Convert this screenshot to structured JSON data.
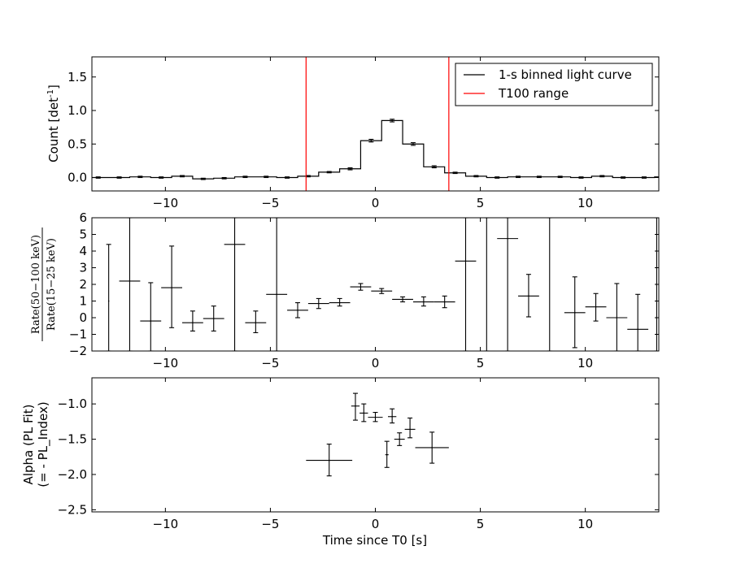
{
  "chart_data": [
    {
      "type": "line",
      "subtype": "step-with-errorbars",
      "ylabel": "Count [det",
      "ylabel_sup": "-1",
      "ylabel_close": "]",
      "xlim": [
        -13.5,
        13.5
      ],
      "ylim": [
        -0.2,
        1.8
      ],
      "xticks": [
        -10,
        -5,
        0,
        5,
        10
      ],
      "xtick_labels": [
        "−10",
        "−5",
        "0",
        "5",
        "10"
      ],
      "yticks": [
        0.0,
        0.5,
        1.0,
        1.5
      ],
      "ytick_labels": [
        "0.0",
        "0.5",
        "1.0",
        "1.5"
      ],
      "bin_edges": [
        -13.7,
        -12.7,
        -11.7,
        -10.7,
        -9.7,
        -8.7,
        -7.7,
        -6.7,
        -5.7,
        -4.7,
        -3.7,
        -2.7,
        -1.7,
        -0.7,
        0.3,
        1.3,
        2.3,
        3.3,
        4.3,
        5.3,
        6.3,
        7.3,
        8.3,
        9.3,
        10.3,
        11.3,
        12.3,
        13.3,
        14.3
      ],
      "series": [
        {
          "name": "1-s binned light curve",
          "color": "#000000",
          "values": [
            0.0,
            0.0,
            0.01,
            0.0,
            0.02,
            -0.02,
            -0.01,
            0.01,
            0.01,
            0.0,
            0.02,
            0.08,
            0.13,
            0.55,
            0.85,
            0.5,
            0.16,
            0.07,
            0.02,
            0.0,
            0.01,
            0.01,
            0.01,
            0.0,
            0.02,
            0.0,
            0.0,
            0.01
          ],
          "errors": [
            0.01,
            0.01,
            0.01,
            0.01,
            0.01,
            0.01,
            0.01,
            0.01,
            0.01,
            0.01,
            0.01,
            0.01,
            0.015,
            0.02,
            0.02,
            0.02,
            0.015,
            0.01,
            0.01,
            0.01,
            0.01,
            0.01,
            0.01,
            0.01,
            0.01,
            0.01,
            0.01,
            0.01
          ]
        }
      ],
      "vlines": {
        "name": "T100 range",
        "color": "#ff0000",
        "x": [
          -3.3,
          3.5
        ]
      },
      "legend": {
        "placement": "top-right",
        "entries": [
          {
            "label": "1-s binned light curve",
            "color": "#000000"
          },
          {
            "label": "T100 range",
            "color": "#ff0000"
          }
        ]
      }
    },
    {
      "type": "scatter",
      "subtype": "errorbars",
      "ylabel_num": "Rate(50−100 keV)",
      "ylabel_den": "Rate(15−25 keV)",
      "xlim": [
        -13.5,
        13.5
      ],
      "ylim": [
        -2,
        6
      ],
      "xticks": [
        -10,
        -5,
        0,
        5,
        10
      ],
      "xtick_labels": [
        "−10",
        "−5",
        "0",
        "5",
        "10"
      ],
      "yticks": [
        -2,
        -1,
        0,
        1,
        2,
        3,
        4,
        5,
        6
      ],
      "ytick_labels": [
        "−2",
        "−1",
        "0",
        "1",
        "2",
        "3",
        "4",
        "5",
        "6"
      ],
      "points": [
        {
          "x": -12.7,
          "y": 1.0,
          "xerr": 0.0,
          "ylo": -2.0,
          "yhi": 4.4
        },
        {
          "x": -11.7,
          "y": 2.2,
          "xerr": 0.5,
          "ylo": -2.0,
          "yhi": 6.0
        },
        {
          "x": -10.7,
          "y": -0.2,
          "xerr": 0.5,
          "ylo": -2.0,
          "yhi": 2.1
        },
        {
          "x": -9.7,
          "y": 1.8,
          "xerr": 0.5,
          "ylo": -0.6,
          "yhi": 4.3
        },
        {
          "x": -8.7,
          "y": -0.3,
          "xerr": 0.5,
          "ylo": -0.8,
          "yhi": 0.4
        },
        {
          "x": -7.7,
          "y": -0.05,
          "xerr": 0.5,
          "ylo": -0.8,
          "yhi": 0.7
        },
        {
          "x": -6.7,
          "y": 4.4,
          "xerr": 0.5,
          "ylo": -2.0,
          "yhi": 6.0
        },
        {
          "x": -5.7,
          "y": -0.3,
          "xerr": 0.5,
          "ylo": -0.9,
          "yhi": 0.4
        },
        {
          "x": -4.7,
          "y": 1.4,
          "xerr": 0.5,
          "ylo": -2.0,
          "yhi": 6.0
        },
        {
          "x": -3.7,
          "y": 0.45,
          "xerr": 0.5,
          "ylo": 0.0,
          "yhi": 0.9
        },
        {
          "x": -2.7,
          "y": 0.85,
          "xerr": 0.5,
          "ylo": 0.55,
          "yhi": 1.15
        },
        {
          "x": -1.7,
          "y": 0.9,
          "xerr": 0.5,
          "ylo": 0.7,
          "yhi": 1.15
        },
        {
          "x": -0.7,
          "y": 1.85,
          "xerr": 0.5,
          "ylo": 1.65,
          "yhi": 2.05
        },
        {
          "x": 0.3,
          "y": 1.6,
          "xerr": 0.5,
          "ylo": 1.45,
          "yhi": 1.75
        },
        {
          "x": 1.3,
          "y": 1.1,
          "xerr": 0.5,
          "ylo": 0.95,
          "yhi": 1.25
        },
        {
          "x": 2.3,
          "y": 0.95,
          "xerr": 0.5,
          "ylo": 0.7,
          "yhi": 1.25
        },
        {
          "x": 3.3,
          "y": 0.95,
          "xerr": 0.5,
          "ylo": 0.6,
          "yhi": 1.3
        },
        {
          "x": 4.3,
          "y": 3.4,
          "xerr": 0.5,
          "ylo": -2.0,
          "yhi": 6.0
        },
        {
          "x": 5.3,
          "y": 6.0,
          "xerr": 0.0,
          "ylo": -2.0,
          "yhi": 6.0
        },
        {
          "x": 6.3,
          "y": 4.75,
          "xerr": 0.5,
          "ylo": -2.0,
          "yhi": 6.0
        },
        {
          "x": 7.3,
          "y": 1.3,
          "xerr": 0.5,
          "ylo": 0.05,
          "yhi": 2.6
        },
        {
          "x": 8.3,
          "y": 6.0,
          "xerr": 0.0,
          "ylo": -2.0,
          "yhi": 6.0
        },
        {
          "x": 9.5,
          "y": 0.3,
          "xerr": 0.5,
          "ylo": -1.8,
          "yhi": 2.45
        },
        {
          "x": 10.5,
          "y": 0.65,
          "xerr": 0.5,
          "ylo": -0.2,
          "yhi": 1.45
        },
        {
          "x": 11.5,
          "y": 0.0,
          "xerr": 0.5,
          "ylo": -2.0,
          "yhi": 2.05
        },
        {
          "x": 12.5,
          "y": -0.7,
          "xerr": 0.5,
          "ylo": -2.0,
          "yhi": 1.4
        },
        {
          "x": 13.4,
          "y": 6.0,
          "xerr": 0.0,
          "ylo": -2.0,
          "yhi": 6.0
        }
      ]
    },
    {
      "type": "scatter",
      "subtype": "errorbars",
      "ylabel": "Alpha (PL Fit)",
      "ylabel2": "(= - PL_Index)",
      "xlabel": "Time since T0 [s]",
      "xlim": [
        -13.5,
        13.5
      ],
      "ylim": [
        -2.53,
        -0.63
      ],
      "xticks": [
        -10,
        -5,
        0,
        5,
        10
      ],
      "xtick_labels": [
        "−10",
        "−5",
        "0",
        "5",
        "10"
      ],
      "yticks": [
        -1.0,
        -1.5,
        -2.0,
        -2.5
      ],
      "ytick_labels": [
        "−1.0",
        "−1.5",
        "−2.0",
        "−2.5"
      ],
      "points": [
        {
          "x": -2.2,
          "y": -1.8,
          "xerr": 1.1,
          "ylo": -2.02,
          "yhi": -1.57
        },
        {
          "x": -0.95,
          "y": -1.03,
          "xerr": 0.2,
          "ylo": -1.23,
          "yhi": -0.85
        },
        {
          "x": -0.55,
          "y": -1.13,
          "xerr": 0.2,
          "ylo": -1.25,
          "yhi": -1.0
        },
        {
          "x": 0.0,
          "y": -1.19,
          "xerr": 0.35,
          "ylo": -1.25,
          "yhi": -1.12
        },
        {
          "x": 0.55,
          "y": -1.72,
          "xerr": 0.08,
          "ylo": -1.9,
          "yhi": -1.53
        },
        {
          "x": 0.8,
          "y": -1.18,
          "xerr": 0.2,
          "ylo": -1.27,
          "yhi": -1.07
        },
        {
          "x": 1.15,
          "y": -1.5,
          "xerr": 0.25,
          "ylo": -1.59,
          "yhi": -1.41
        },
        {
          "x": 1.65,
          "y": -1.36,
          "xerr": 0.25,
          "ylo": -1.48,
          "yhi": -1.2
        },
        {
          "x": 2.7,
          "y": -1.62,
          "xerr": 0.8,
          "ylo": -1.84,
          "yhi": -1.4
        }
      ]
    }
  ]
}
